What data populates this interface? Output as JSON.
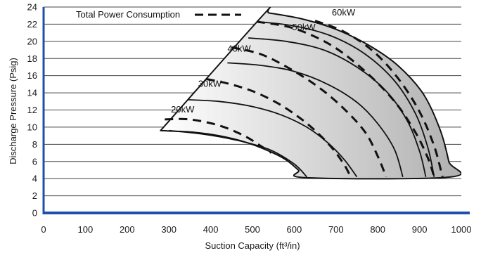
{
  "chart_data": {
    "type": "line",
    "xlabel": "Suction Capacity (ft³/in)",
    "ylabel": "Discharge Pressure (Psig)",
    "xlim": [
      0,
      1000
    ],
    "ylim": [
      0,
      24
    ],
    "x_ticks": [
      0,
      100,
      200,
      300,
      400,
      500,
      600,
      700,
      800,
      900,
      1000
    ],
    "y_ticks": [
      0,
      2,
      4,
      6,
      8,
      10,
      12,
      14,
      16,
      18,
      20,
      22,
      24
    ],
    "grid": "horizontal",
    "legend": {
      "label": "Total Power Consumption",
      "style": "dashed",
      "position": "top-left"
    },
    "colors": {
      "axis": "#1f4fa8",
      "grid": "#444444",
      "curve": "#111111",
      "fill_light": "#ffffff",
      "fill_dark": "#b0b0b0"
    },
    "envelope": [
      [
        280,
        9.6
      ],
      [
        530,
        23.3
      ],
      [
        540,
        23.3
      ],
      [
        620,
        22.6
      ],
      [
        700,
        21.4
      ],
      [
        780,
        19.5
      ],
      [
        850,
        17.1
      ],
      [
        910,
        13.8
      ],
      [
        950,
        9.6
      ],
      [
        970,
        6.0
      ],
      [
        975,
        4.2
      ],
      [
        630,
        4.1
      ],
      [
        610,
        5.0
      ],
      [
        580,
        6.2
      ],
      [
        540,
        7.2
      ],
      [
        480,
        8.3
      ],
      [
        420,
        9.0
      ],
      [
        360,
        9.4
      ],
      [
        280,
        9.6
      ]
    ],
    "series": [
      {
        "name": "20kW",
        "style": "solid",
        "x": [
          300,
          380,
          460,
          540,
          600,
          630
        ],
        "y": [
          9.6,
          9.2,
          8.5,
          7.4,
          5.7,
          4.2
        ]
      },
      {
        "name": "20kW",
        "style": "dashed",
        "x": [
          290,
          350,
          420,
          480,
          520,
          545
        ],
        "y": [
          10.9,
          10.9,
          10.2,
          9.0,
          7.8,
          7.0
        ]
      },
      {
        "name": "30kW",
        "style": "solid",
        "x": [
          345,
          420,
          500,
          570,
          630,
          680,
          720,
          750
        ],
        "y": [
          13.2,
          13.0,
          12.4,
          11.4,
          10.0,
          8.2,
          6.2,
          4.2
        ]
      },
      {
        "name": "30kW",
        "style": "dashed",
        "x": [
          390,
          440,
          500,
          560,
          610,
          650,
          690,
          720,
          735
        ],
        "y": [
          15.6,
          15.1,
          14.2,
          12.8,
          11.2,
          9.6,
          7.6,
          5.6,
          4.2
        ]
      },
      {
        "name": "40kW",
        "style": "solid",
        "x": [
          440,
          520,
          600,
          680,
          750,
          800,
          840,
          860
        ],
        "y": [
          17.5,
          17.2,
          16.5,
          15.0,
          12.9,
          10.4,
          7.4,
          4.2
        ]
      },
      {
        "name": "40kW",
        "style": "dashed",
        "x": [
          450,
          520,
          590,
          660,
          720,
          770,
          800,
          820
        ],
        "y": [
          19.3,
          18.5,
          16.8,
          14.6,
          12.1,
          9.4,
          6.6,
          4.2
        ]
      },
      {
        "name": "50kW",
        "style": "solid",
        "x": [
          490,
          580,
          670,
          750,
          820,
          870,
          900,
          915
        ],
        "y": [
          20.4,
          20.0,
          19.0,
          17.0,
          14.2,
          10.8,
          7.2,
          4.2
        ]
      },
      {
        "name": "50kW",
        "style": "dashed",
        "x": [
          510,
          600,
          690,
          770,
          840,
          890,
          920,
          935
        ],
        "y": [
          22.3,
          21.5,
          19.5,
          16.5,
          13.0,
          9.4,
          6.4,
          4.2
        ]
      },
      {
        "name": "60kW",
        "style": "solid",
        "x": [
          510,
          600,
          690,
          770,
          840,
          890,
          920,
          935
        ],
        "y": [
          22.3,
          21.8,
          20.6,
          18.5,
          15.4,
          11.6,
          7.6,
          4.2
        ]
      },
      {
        "name": "60kW",
        "style": "dashed",
        "x": [
          650,
          720,
          790,
          850,
          900,
          935,
          955
        ],
        "y": [
          22.4,
          21.1,
          18.8,
          15.6,
          11.8,
          7.8,
          4.2
        ]
      }
    ],
    "series_labels": [
      {
        "text": "20kW",
        "x": 305,
        "y": 11.7
      },
      {
        "text": "30kW",
        "x": 370,
        "y": 14.7
      },
      {
        "text": "40kW",
        "x": 440,
        "y": 18.8
      },
      {
        "text": "50kW",
        "x": 595,
        "y": 21.3
      },
      {
        "text": "60kW",
        "x": 690,
        "y": 23.0
      }
    ]
  }
}
